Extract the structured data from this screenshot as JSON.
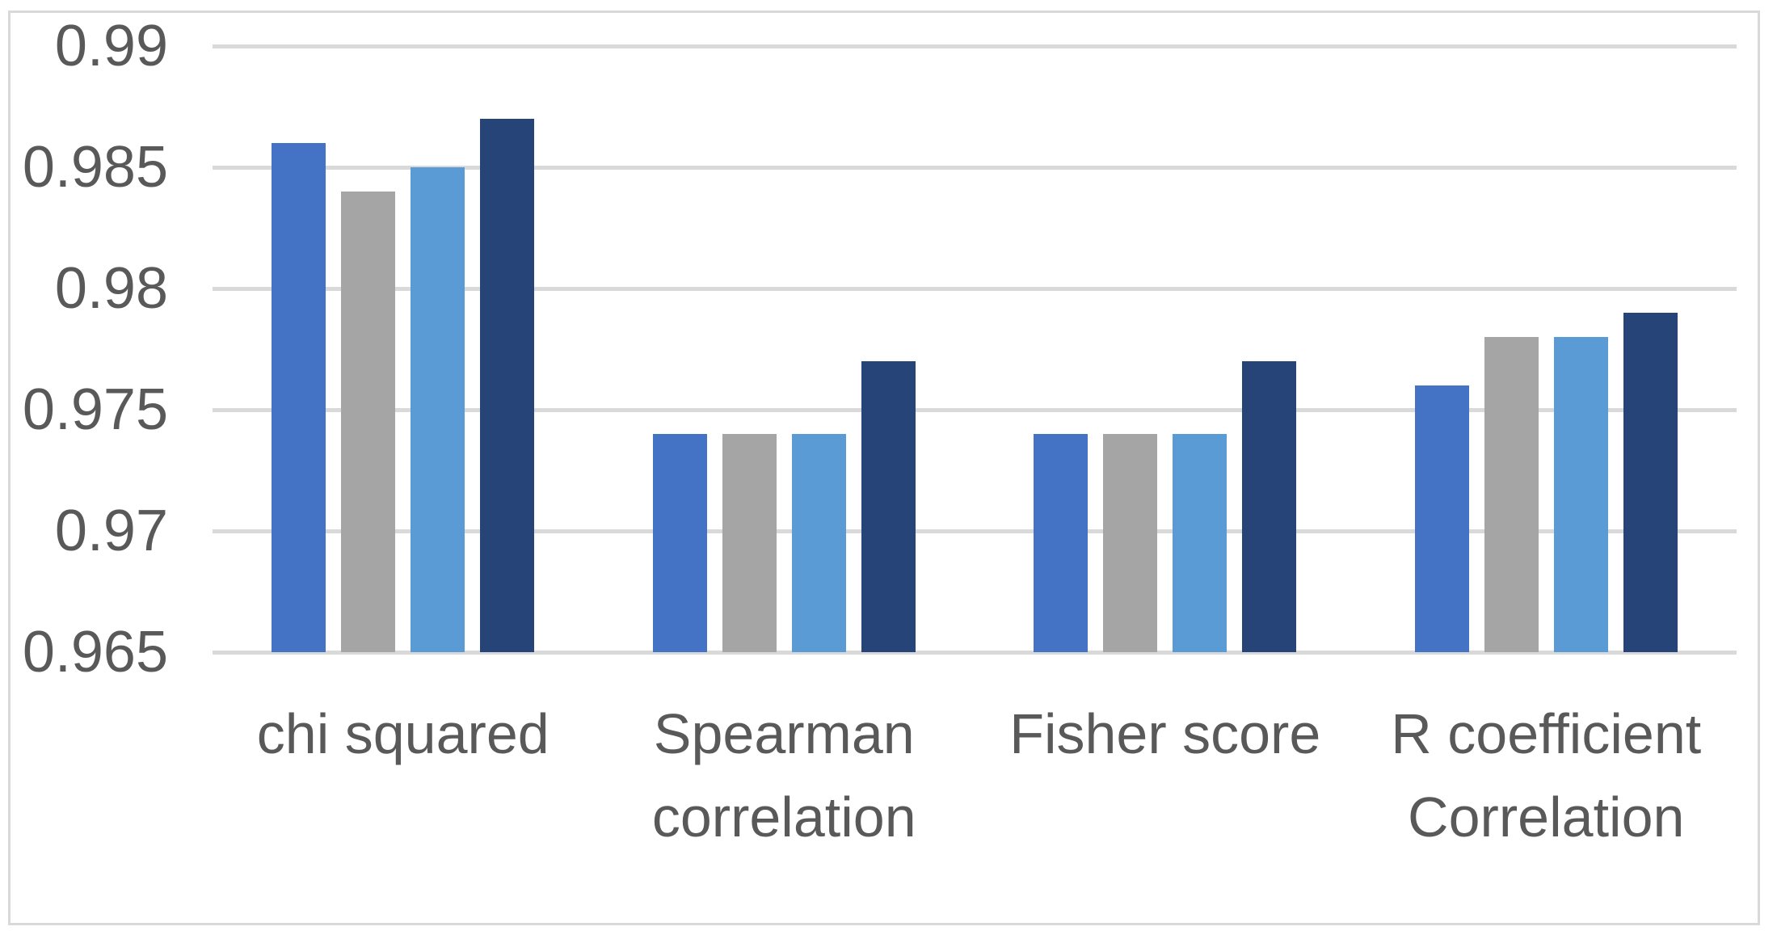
{
  "chart_data": {
    "type": "bar",
    "title": "",
    "xlabel": "",
    "ylabel": "",
    "categories": [
      "chi squared",
      "Spearman correlation",
      "Fisher score",
      "R coefficient Correlation"
    ],
    "category_label_lines": [
      [
        "chi squared"
      ],
      [
        "Spearman",
        "correlation"
      ],
      [
        "Fisher score"
      ],
      [
        "R coefficient",
        "Correlation"
      ]
    ],
    "series": [
      {
        "name": "series-1-blue",
        "color": "#4472C4",
        "values": [
          0.986,
          0.974,
          0.974,
          0.976
        ]
      },
      {
        "name": "series-2-gray",
        "color": "#A5A5A5",
        "values": [
          0.984,
          0.974,
          0.974,
          0.978
        ]
      },
      {
        "name": "series-3-light-blue",
        "color": "#5B9BD5",
        "values": [
          0.985,
          0.974,
          0.974,
          0.978
        ]
      },
      {
        "name": "series-4-dark-blue",
        "color": "#264478",
        "values": [
          0.987,
          0.977,
          0.977,
          0.979
        ]
      }
    ],
    "ylim": [
      0.965,
      0.99
    ],
    "ytick_step": 0.005,
    "ytick_labels": [
      "0.99",
      "0.985",
      "0.98",
      "0.975",
      "0.97",
      "0.965"
    ],
    "grid": true,
    "legend_position": "none",
    "colors": {
      "gridline": "#D9D9D9",
      "frame_border": "#D9D9D9",
      "axis_text": "#595959",
      "background": "#FFFFFF"
    }
  }
}
